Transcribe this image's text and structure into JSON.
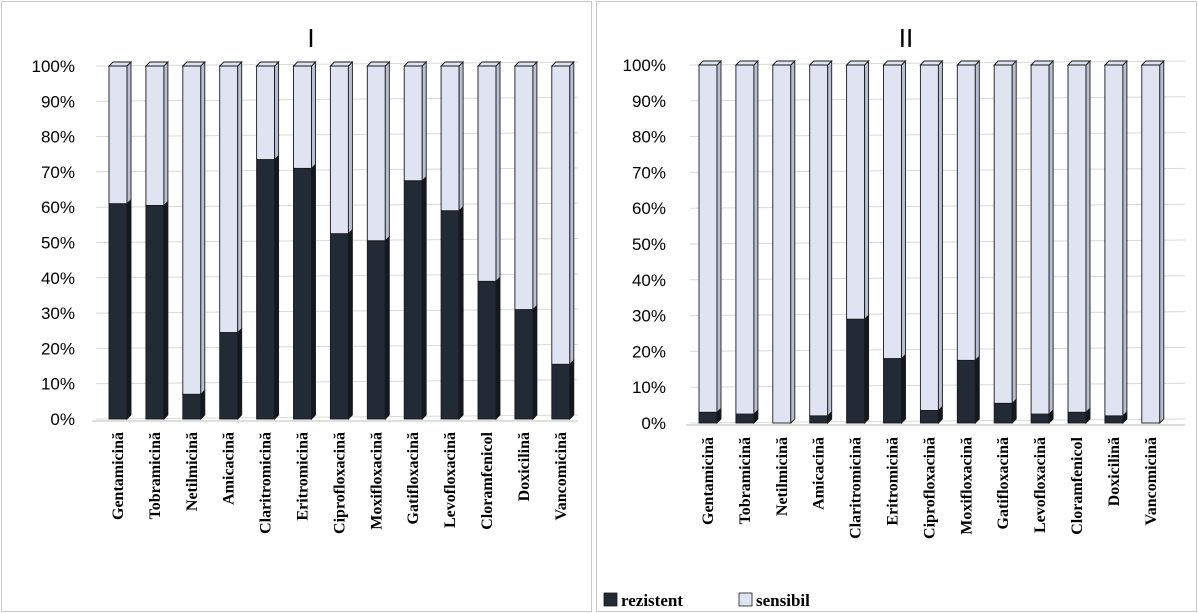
{
  "colors": {
    "rezistent": "#222a35",
    "rezistent_side": "#111820",
    "sensibil": "#dfe3f2",
    "sensibil_side": "#b9bfd3",
    "outline": "#1a1a1a",
    "grid": "#d9d9d9",
    "frame": "#c8c8c8"
  },
  "legend": {
    "items": [
      {
        "label": "rezistent",
        "key": "rezistent"
      },
      {
        "label": "sensibil",
        "key": "sensibil"
      }
    ]
  },
  "chart_data": [
    {
      "type": "bar",
      "stacked": true,
      "normalized": true,
      "title": "I",
      "categories": [
        "Gentamicină",
        "Tobramicină",
        "Netilmicină",
        "Amicacină",
        "Claritromicină",
        "Eritromicină",
        "Ciprofloxacină",
        "Moxifloxacină",
        "Gatifloxacină",
        "Levofloxacină",
        "Cloramfenicol",
        "Doxicilină",
        "Vancomicină"
      ],
      "series": [
        {
          "name": "rezistent",
          "values": [
            61,
            60.5,
            7,
            24.5,
            73.5,
            71,
            52.5,
            50.5,
            67.5,
            59,
            39,
            31,
            15.5
          ]
        },
        {
          "name": "sensibil",
          "values": [
            39,
            39.5,
            93,
            75.5,
            26.5,
            29,
            47.5,
            49.5,
            32.5,
            41,
            61,
            69,
            84.5
          ]
        }
      ],
      "yticks": [
        "0%",
        "10%",
        "20%",
        "30%",
        "40%",
        "50%",
        "60%",
        "70%",
        "80%",
        "90%",
        "100%"
      ],
      "ylim": [
        0,
        100
      ],
      "grid": true
    },
    {
      "type": "bar",
      "stacked": true,
      "normalized": true,
      "title": "II",
      "categories": [
        "Gentamicină",
        "Tobramicină",
        "Netilmicină",
        "Amicacină",
        "Claritromicină",
        "Eritromicină",
        "Ciprofloxacină",
        "Moxifloxacină",
        "Gatifloxacină",
        "Levofloxacină",
        "Cloramfenicol",
        "Doxicilină",
        "Vancomicină"
      ],
      "series": [
        {
          "name": "rezistent",
          "values": [
            3,
            2.5,
            0,
            2,
            29,
            18,
            3.5,
            17.5,
            5.5,
            2.5,
            3,
            2,
            0
          ]
        },
        {
          "name": "sensibil",
          "values": [
            97,
            97.5,
            100,
            98,
            71,
            82,
            96.5,
            82.5,
            94.5,
            97.5,
            97,
            98,
            100
          ]
        }
      ],
      "yticks": [
        "0%",
        "10%",
        "20%",
        "30%",
        "40%",
        "50%",
        "60%",
        "70%",
        "80%",
        "90%",
        "100%"
      ],
      "ylim": [
        0,
        100
      ],
      "grid": true,
      "legend_position": "bottom-left"
    }
  ]
}
